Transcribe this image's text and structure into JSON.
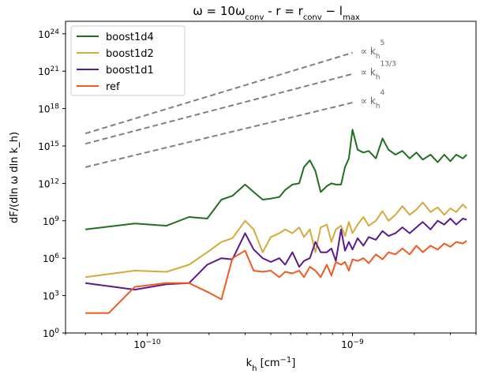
{
  "chart_data": {
    "type": "line",
    "title": "ω = 10ω_conv - r = r_conv − l_max",
    "title_parts": {
      "omega": "ω = 10ω",
      "conv": "conv",
      "mid": " - r = r",
      "conv2": "conv",
      "minus": " − l",
      "max": "max"
    },
    "xlabel": {
      "main": "k",
      "sub": "h",
      "unit": " [cm",
      "exp": "−1",
      "close": "]"
    },
    "ylabel": "dF/(dln ω dln k_h)",
    "x_scale": "log",
    "y_scale": "log",
    "xlim": [
      4e-11,
      4e-09
    ],
    "ylim": [
      1,
      1e+25
    ],
    "x_ticks": [
      {
        "value": 1e-10,
        "base": "10",
        "exp": "−10"
      },
      {
        "value": 1e-09,
        "base": "10",
        "exp": "−9"
      }
    ],
    "y_ticks": [
      {
        "value": 1,
        "base": "10",
        "exp": "0"
      },
      {
        "value": 1000.0,
        "base": "10",
        "exp": "3"
      },
      {
        "value": 1000000.0,
        "base": "10",
        "exp": "6"
      },
      {
        "value": 1000000000.0,
        "base": "10",
        "exp": "9"
      },
      {
        "value": 1000000000000.0,
        "base": "10",
        "exp": "12"
      },
      {
        "value": 1000000000000000.0,
        "base": "10",
        "exp": "15"
      },
      {
        "value": 1e+18,
        "base": "10",
        "exp": "18"
      },
      {
        "value": 1e+21,
        "base": "10",
        "exp": "21"
      },
      {
        "value": 1e+24,
        "base": "10",
        "exp": "24"
      }
    ],
    "legend_position": "top-left",
    "grid": false,
    "series": [
      {
        "name": "boost1d4",
        "color": "#1f6f1f",
        "x": [
          5e-11,
          8.7e-11,
          1.24e-10,
          1.6e-10,
          1.96e-10,
          2.3e-10,
          2.6e-10,
          3e-10,
          3.3e-10,
          3.65e-10,
          4e-10,
          4.4e-10,
          4.7e-10,
          5.1e-10,
          5.5e-10,
          5.8e-10,
          6.2e-10,
          6.6e-10,
          7e-10,
          7.5e-10,
          7.9e-10,
          8.3e-10,
          8.8e-10,
          9.2e-10,
          9.6e-10,
          1e-09,
          1.06e-09,
          1.13e-09,
          1.2e-09,
          1.3e-09,
          1.4e-09,
          1.5e-09,
          1.62e-09,
          1.75e-09,
          1.9e-09,
          2.05e-09,
          2.2e-09,
          2.4e-09,
          2.6e-09,
          2.8e-09,
          3e-09,
          3.2e-09,
          3.45e-09,
          3.6e-09
        ],
        "y": [
          200000000.0,
          600000000.0,
          400000000.0,
          2000000000.0,
          1500000000.0,
          50000000000.0,
          100000000000.0,
          800000000000.0,
          200000000000.0,
          50000000000.0,
          60000000000.0,
          80000000000.0,
          300000000000.0,
          800000000000.0,
          1000000000000.0,
          20000000000000.0,
          70000000000000.0,
          10000000000000.0,
          200000000000.0,
          600000000000.0,
          1000000000000.0,
          800000000000.0,
          800000000000.0,
          20000000000000.0,
          100000000000000.0,
          2e+16,
          500000000000000.0,
          300000000000000.0,
          400000000000000.0,
          100000000000000.0,
          4000000000000000.0,
          500000000000000.0,
          200000000000000.0,
          400000000000000.0,
          100000000000000.0,
          300000000000000.0,
          80000000000000.0,
          200000000000000.0,
          50000000000000.0,
          200000000000000.0,
          60000000000000.0,
          200000000000000.0,
          100000000000000.0,
          200000000000000.0
        ]
      },
      {
        "name": "boost1d2",
        "color": "#d4aa3c",
        "x": [
          5e-11,
          8.7e-11,
          1.24e-10,
          1.6e-10,
          1.96e-10,
          2.3e-10,
          2.6e-10,
          3e-10,
          3.3e-10,
          3.65e-10,
          4e-10,
          4.4e-10,
          4.7e-10,
          5.1e-10,
          5.5e-10,
          5.8e-10,
          6.2e-10,
          6.6e-10,
          7e-10,
          7.5e-10,
          7.9e-10,
          8.3e-10,
          8.8e-10,
          9.2e-10,
          9.6e-10,
          1e-09,
          1.06e-09,
          1.13e-09,
          1.2e-09,
          1.3e-09,
          1.4e-09,
          1.5e-09,
          1.62e-09,
          1.75e-09,
          1.9e-09,
          2.05e-09,
          2.2e-09,
          2.4e-09,
          2.6e-09,
          2.8e-09,
          3e-09,
          3.2e-09,
          3.45e-09,
          3.6e-09
        ],
        "y": [
          30000.0,
          100000.0,
          80000.0,
          300000.0,
          3000000.0,
          20000000.0,
          40000000.0,
          1000000000.0,
          200000000.0,
          3000000.0,
          50000000.0,
          100000000.0,
          200000000.0,
          100000000.0,
          300000000.0,
          50000000.0,
          200000000.0,
          3000000.0,
          300000000.0,
          500000000.0,
          20000000.0,
          200000000.0,
          400000000.0,
          60000000.0,
          800000000.0,
          100000000.0,
          500000000.0,
          2000000000.0,
          400000000.0,
          1000000000.0,
          6000000000.0,
          1000000000.0,
          3000000000.0,
          15000000000.0,
          3000000000.0,
          8000000000.0,
          30000000000.0,
          5000000000.0,
          12000000000.0,
          3000000000.0,
          10000000000.0,
          5000000000.0,
          20000000000.0,
          10000000000.0
        ]
      },
      {
        "name": "boost1d1",
        "color": "#5a1a91",
        "x": [
          5e-11,
          8.7e-11,
          1.24e-10,
          1.6e-10,
          1.96e-10,
          2.3e-10,
          2.6e-10,
          3e-10,
          3.3e-10,
          3.65e-10,
          4e-10,
          4.4e-10,
          4.7e-10,
          5.1e-10,
          5.5e-10,
          5.8e-10,
          6.2e-10,
          6.6e-10,
          7e-10,
          7.5e-10,
          7.9e-10,
          8.3e-10,
          8.8e-10,
          9.2e-10,
          9.6e-10,
          1e-09,
          1.06e-09,
          1.13e-09,
          1.2e-09,
          1.3e-09,
          1.4e-09,
          1.5e-09,
          1.62e-09,
          1.75e-09,
          1.9e-09,
          2.05e-09,
          2.2e-09,
          2.4e-09,
          2.6e-09,
          2.8e-09,
          3e-09,
          3.2e-09,
          3.45e-09,
          3.6e-09
        ],
        "y": [
          10000.0,
          3000.0,
          8000.0,
          10000.0,
          300000.0,
          1000000.0,
          800000.0,
          100000000.0,
          5000000.0,
          1000000.0,
          500000.0,
          1000000.0,
          300000.0,
          3000000.0,
          200000.0,
          600000.0,
          1000000.0,
          20000000.0,
          3000000.0,
          3000000.0,
          6000000.0,
          600000.0,
          200000000.0,
          4000000.0,
          20000000.0,
          5000000.0,
          40000000.0,
          10000000.0,
          50000000.0,
          30000000.0,
          150000000.0,
          60000000.0,
          100000000.0,
          300000000.0,
          100000000.0,
          300000000.0,
          800000000.0,
          200000000.0,
          1000000000.0,
          500000000.0,
          1500000000.0,
          500000000.0,
          1500000000.0,
          1200000000.0
        ]
      },
      {
        "name": "ref",
        "color": "#f05a1e",
        "x": [
          5e-11,
          6.5e-11,
          8.7e-11,
          1.24e-10,
          1.6e-10,
          1.96e-10,
          2.3e-10,
          2.6e-10,
          3e-10,
          3.3e-10,
          3.65e-10,
          4e-10,
          4.4e-10,
          4.7e-10,
          5.1e-10,
          5.5e-10,
          5.8e-10,
          6.2e-10,
          6.6e-10,
          7e-10,
          7.5e-10,
          7.9e-10,
          8.3e-10,
          8.8e-10,
          9.2e-10,
          9.6e-10,
          1e-09,
          1.06e-09,
          1.13e-09,
          1.2e-09,
          1.3e-09,
          1.4e-09,
          1.5e-09,
          1.62e-09,
          1.75e-09,
          1.9e-09,
          2.05e-09,
          2.2e-09,
          2.4e-09,
          2.6e-09,
          2.8e-09,
          3e-09,
          3.2e-09,
          3.45e-09,
          3.6e-09
        ],
        "y": [
          40,
          40,
          5000.0,
          10000.0,
          10000.0,
          2000.0,
          500.0,
          1000000.0,
          4000000.0,
          100000.0,
          80000.0,
          100000.0,
          30000.0,
          80000.0,
          60000.0,
          100000.0,
          30000.0,
          200000.0,
          100000.0,
          30000.0,
          300000.0,
          40000.0,
          500000.0,
          300000.0,
          500000.0,
          100000.0,
          800000.0,
          600000.0,
          1000000.0,
          400000.0,
          2000000.0,
          800000.0,
          3000000.0,
          2000000.0,
          6000000.0,
          2000000.0,
          10000000.0,
          3000000.0,
          10000000.0,
          5000000.0,
          15000000.0,
          8000000.0,
          20000000.0,
          15000000.0,
          25000000.0
        ]
      }
    ],
    "reference_lines": [
      {
        "label": "∝ k",
        "sub": "h",
        "exp": "5",
        "color": "#808080",
        "x": [
          5e-11,
          1e-09
        ],
        "y": [
          1e+16,
          3e+22
        ]
      },
      {
        "label": "∝ k",
        "sub": "h",
        "exp": "13/3",
        "color": "#808080",
        "x": [
          5e-11,
          1e-09
        ],
        "y": [
          1500000000000000.0,
          6e+20
        ]
      },
      {
        "label": "∝ k",
        "sub": "h",
        "exp": "4",
        "color": "#808080",
        "x": [
          5e-11,
          1e-09
        ],
        "y": [
          20000000000000.0,
          3e+18
        ]
      }
    ]
  }
}
